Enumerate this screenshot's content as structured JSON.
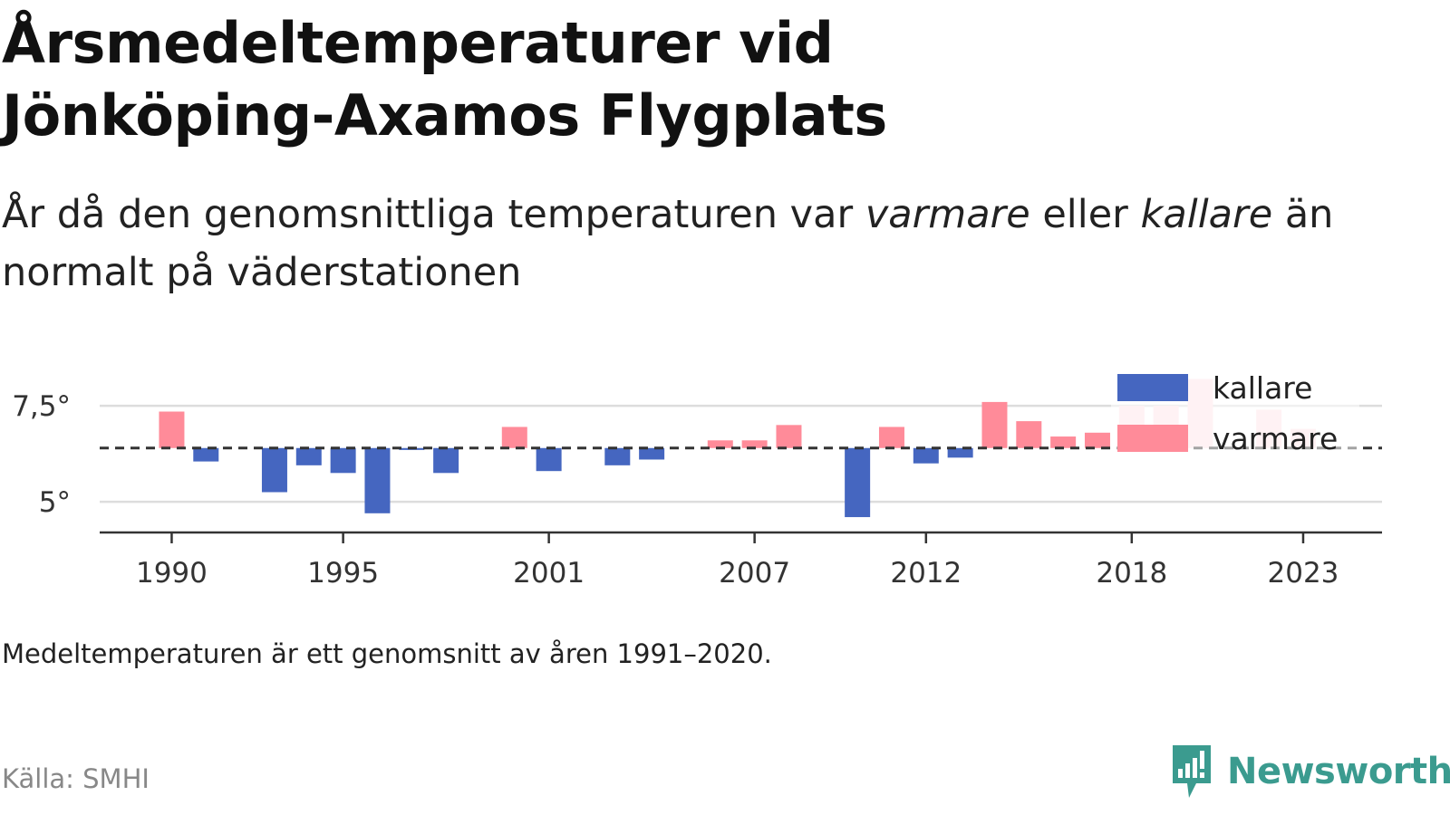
{
  "title_line1": "Årsmedeltemperaturer vid",
  "title_line2": "Jönköping-Axamos Flygplats",
  "subtitle": {
    "part1": "År då den genomsnittliga temperaturen var ",
    "warmer_word": "varmare",
    "part2": " eller ",
    "colder_word": "kallare",
    "part3": " än",
    "line2": "normalt på väderstationen"
  },
  "note": "Medeltemperaturen är ett genomsnitt av åren 1991–2020.",
  "source": "Källa: SMHI",
  "brand": "Newsworthy",
  "colors": {
    "colder": "#4566c0",
    "warmer": "#ff8b99",
    "warmer_faded": "#ffe3e6",
    "grid": "#dddddd",
    "axis": "#333333",
    "brand": "#3b9b8f"
  },
  "chart_data": {
    "type": "bar",
    "baseline": 6.4,
    "ylim": [
      4.2,
      8.4
    ],
    "yticks": [
      5,
      7.5
    ],
    "ytick_labels": [
      "5°",
      "7,5°"
    ],
    "xticks": [
      1990,
      1995,
      2001,
      2007,
      2012,
      2018,
      2023
    ],
    "xtick_labels": [
      "1990",
      "1995",
      "2001",
      "2007",
      "2012",
      "2018",
      "2023"
    ],
    "xlim": [
      1987.9,
      2025.3
    ],
    "legend": {
      "position": "top-right",
      "entries": [
        "kallare",
        "varmare"
      ]
    },
    "years": [
      1990,
      1991,
      1992,
      1993,
      1994,
      1995,
      1996,
      1997,
      1998,
      1999,
      2000,
      2001,
      2002,
      2003,
      2004,
      2005,
      2006,
      2007,
      2008,
      2009,
      2010,
      2011,
      2012,
      2013,
      2014,
      2015,
      2016,
      2017,
      2018,
      2019,
      2020,
      2021,
      2022,
      2023
    ],
    "values": [
      7.35,
      6.05,
      null,
      5.25,
      5.95,
      5.75,
      4.7,
      6.35,
      5.75,
      null,
      6.95,
      5.8,
      null,
      5.95,
      6.1,
      null,
      6.6,
      6.6,
      7.0,
      null,
      4.6,
      6.95,
      6.0,
      6.15,
      7.6,
      7.1,
      6.7,
      6.8,
      7.5,
      7.5,
      8.2,
      null,
      7.4,
      6.9
    ]
  }
}
